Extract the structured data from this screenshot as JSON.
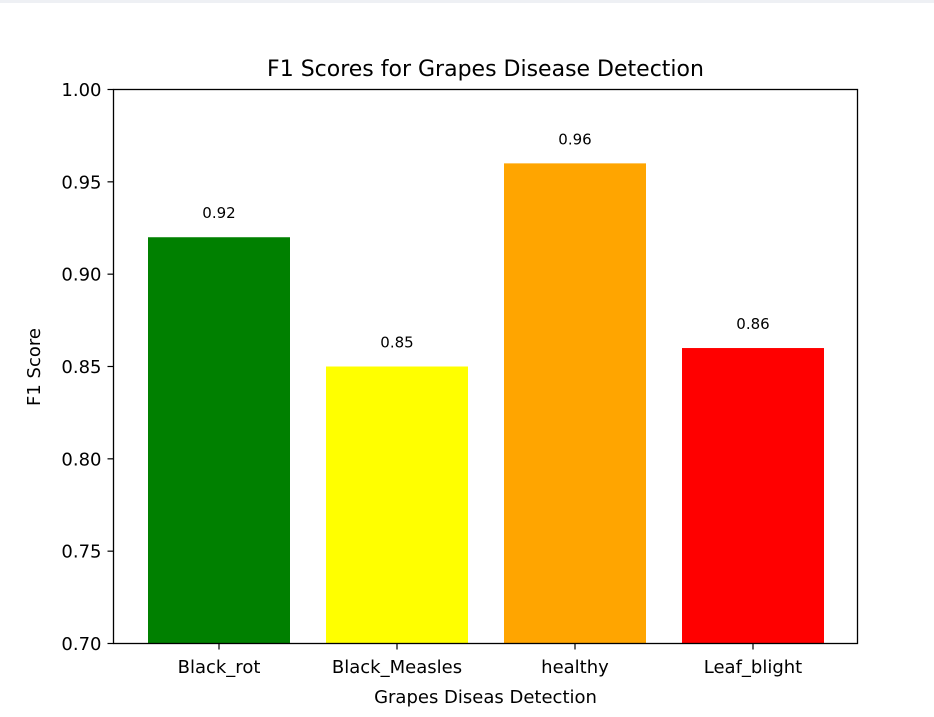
{
  "chart_data": {
    "type": "bar",
    "title": "F1 Scores for Grapes Disease Detection",
    "xlabel": "Grapes Diseas Detection",
    "ylabel": "F1 Score",
    "categories": [
      "Black_rot",
      "Black_Measles",
      "healthy",
      "Leaf_blight"
    ],
    "values": [
      0.92,
      0.85,
      0.96,
      0.86
    ],
    "value_labels": [
      "0.92",
      "0.85",
      "0.96",
      "0.86"
    ],
    "colors": [
      "#008000",
      "#ffff00",
      "#ffa500",
      "#ff0000"
    ],
    "ylim": [
      0.7,
      1.0
    ],
    "yticks": [
      0.7,
      0.75,
      0.8,
      0.85,
      0.9,
      0.95,
      1.0
    ],
    "ytick_labels": [
      "0.70",
      "0.75",
      "0.80",
      "0.85",
      "0.90",
      "0.95",
      "1.00"
    ],
    "grid": false,
    "legend": "none"
  }
}
